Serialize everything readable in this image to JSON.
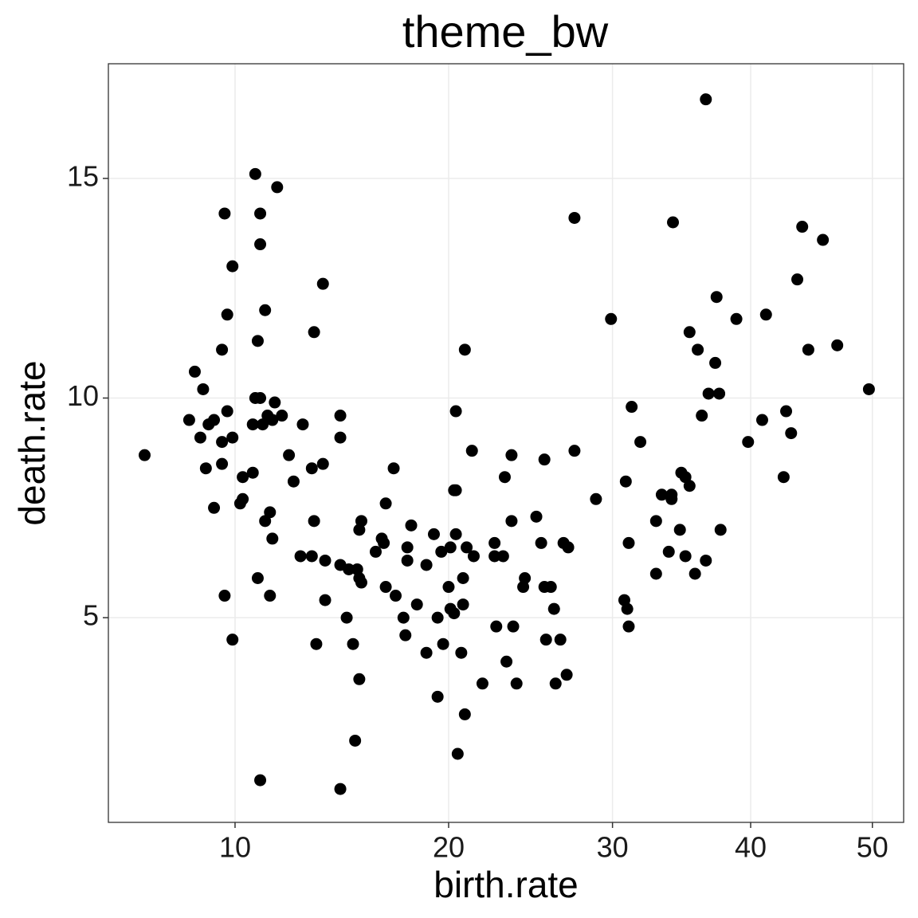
{
  "chart_data": {
    "type": "scatter",
    "title": "theme_bw",
    "x_label": "birth.rate",
    "y_label": "death.rate",
    "x_scale": "sqrt",
    "grid": true,
    "color": "#000000",
    "xlim": [
      5.69,
      52.75
    ],
    "ylim": [
      0.34,
      17.61
    ],
    "xticks": [
      10,
      20,
      30,
      40,
      50
    ],
    "yticks": [
      5,
      10,
      15
    ],
    "x": [
      6.8,
      8.3,
      8.5,
      8.7,
      8.8,
      8.9,
      9.0,
      9.2,
      9.2,
      9.5,
      9.5,
      9.5,
      9.6,
      9.6,
      9.7,
      9.7,
      9.9,
      9.9,
      9.9,
      10.2,
      10.3,
      10.3,
      10.7,
      10.7,
      10.8,
      10.8,
      10.9,
      10.9,
      11.0,
      11.0,
      11.0,
      11.0,
      11.1,
      11.2,
      11.2,
      11.3,
      11.4,
      11.4,
      11.5,
      11.5,
      11.6,
      11.7,
      11.9,
      12.2,
      12.4,
      12.7,
      12.8,
      13.2,
      13.2,
      13.3,
      13.3,
      13.4,
      13.7,
      13.7,
      13.8,
      13.8,
      14.5,
      14.5,
      14.5,
      14.5,
      14.8,
      14.9,
      15.1,
      15.2,
      15.3,
      15.4,
      15.4,
      15.4,
      15.5,
      15.5,
      16.2,
      16.5,
      16.6,
      16.7,
      16.7,
      17.1,
      17.2,
      17.6,
      17.7,
      17.8,
      17.8,
      18.0,
      18.3,
      18.8,
      18.8,
      19.2,
      19.4,
      19.4,
      19.6,
      19.7,
      20.0,
      20.1,
      20.1,
      20.3,
      20.3,
      20.4,
      20.4,
      20.4,
      20.5,
      20.7,
      20.8,
      20.8,
      20.9,
      20.9,
      21.0,
      21.3,
      21.4,
      21.9,
      22.6,
      22.6,
      22.7,
      23.1,
      23.2,
      23.3,
      23.6,
      23.6,
      23.7,
      23.9,
      24.3,
      24.4,
      25.1,
      25.4,
      25.6,
      25.6,
      25.7,
      26.0,
      26.2,
      26.3,
      26.6,
      26.8,
      27.0,
      27.1,
      27.5,
      27.5,
      28.9,
      29.9,
      30.8,
      30.9,
      31.0,
      31.1,
      31.1,
      31.3,
      31.9,
      33.0,
      33.0,
      33.4,
      33.9,
      34.1,
      34.1,
      34.2,
      34.7,
      34.8,
      35.1,
      35.1,
      35.4,
      35.4,
      35.8,
      36.0,
      36.3,
      36.6,
      36.6,
      36.8,
      37.3,
      37.4,
      37.6,
      37.7,
      38.9,
      39.8,
      40.9,
      41.2,
      42.6,
      42.8,
      43.2,
      43.7,
      44.1,
      44.6,
      45.8,
      47.0,
      49.7
    ],
    "values": [
      8.7,
      9.5,
      10.6,
      9.1,
      10.2,
      8.4,
      9.4,
      9.5,
      7.5,
      8.5,
      9.0,
      11.1,
      14.2,
      5.5,
      11.9,
      9.7,
      13.0,
      4.5,
      9.1,
      7.6,
      8.2,
      7.7,
      8.3,
      9.4,
      15.1,
      10.0,
      11.3,
      5.9,
      14.2,
      13.5,
      1.3,
      10.0,
      9.4,
      12.0,
      7.2,
      9.6,
      7.4,
      5.5,
      9.5,
      6.8,
      9.9,
      14.8,
      9.6,
      8.7,
      8.1,
      6.4,
      9.4,
      8.4,
      6.4,
      11.5,
      7.2,
      4.4,
      12.6,
      8.5,
      6.3,
      5.4,
      9.6,
      9.1,
      6.2,
      1.1,
      5.0,
      6.1,
      4.4,
      2.2,
      6.1,
      7.0,
      5.9,
      3.6,
      5.8,
      7.2,
      6.5,
      6.8,
      6.7,
      7.6,
      5.7,
      8.4,
      5.5,
      5.0,
      4.6,
      6.3,
      6.6,
      7.1,
      5.3,
      6.2,
      4.2,
      6.9,
      5.0,
      3.2,
      6.5,
      4.4,
      5.7,
      6.6,
      5.2,
      5.1,
      7.9,
      6.9,
      7.9,
      9.7,
      1.9,
      4.2,
      5.3,
      5.9,
      11.1,
      2.8,
      6.6,
      8.8,
      6.4,
      3.5,
      6.7,
      6.4,
      4.8,
      6.4,
      8.2,
      4.0,
      8.7,
      7.2,
      4.8,
      3.5,
      5.7,
      5.9,
      7.3,
      6.7,
      8.6,
      5.7,
      4.5,
      5.7,
      5.2,
      3.5,
      4.5,
      6.7,
      3.7,
      6.6,
      8.8,
      14.1,
      7.7,
      11.8,
      5.4,
      8.1,
      5.2,
      6.7,
      4.8,
      9.8,
      9.0,
      7.2,
      6.0,
      7.8,
      6.5,
      7.8,
      7.7,
      14.0,
      7.0,
      8.3,
      6.4,
      8.2,
      11.5,
      8.0,
      6.0,
      11.1,
      9.6,
      16.8,
      6.3,
      10.1,
      10.8,
      12.3,
      10.1,
      7.0,
      11.8,
      9.0,
      9.5,
      11.9,
      8.2,
      9.7,
      9.2,
      12.7,
      13.9,
      11.1,
      13.6,
      11.2,
      10.2
    ]
  }
}
